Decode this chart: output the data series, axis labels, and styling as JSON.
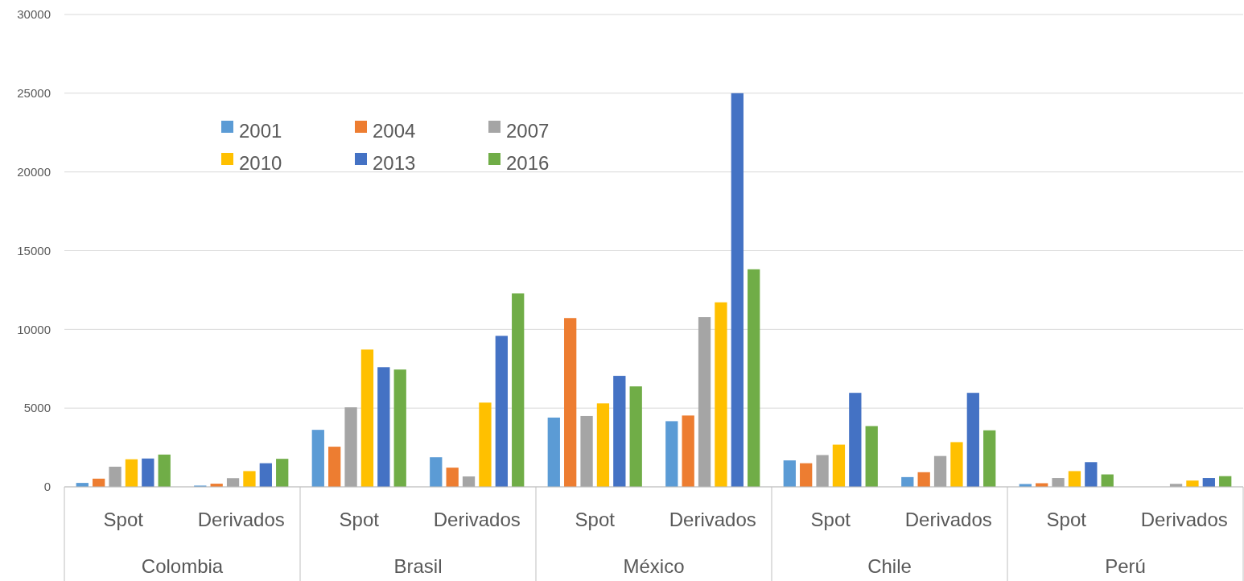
{
  "chart_data": {
    "type": "bar",
    "categories": [
      "Spot",
      "Derivados",
      "Spot",
      "Derivados",
      "Spot",
      "Derivados",
      "Spot",
      "Derivados",
      "Spot",
      "Derivados"
    ],
    "annotations": [
      "Colombia",
      "Brasil",
      "México",
      "Chile",
      "Perú"
    ],
    "series": [
      {
        "name": "2001",
        "color": "#5b9bd5",
        "values": [
          250,
          80,
          3620,
          1880,
          4400,
          4170,
          1680,
          620,
          180,
          0
        ]
      },
      {
        "name": "2004",
        "color": "#ed7d31",
        "values": [
          520,
          200,
          2550,
          1220,
          10720,
          4530,
          1500,
          930,
          230,
          0
        ]
      },
      {
        "name": "2007",
        "color": "#a5a5a5",
        "values": [
          1280,
          550,
          5050,
          660,
          4500,
          10780,
          2020,
          1960,
          560,
          190
        ]
      },
      {
        "name": "2010",
        "color": "#ffc000",
        "values": [
          1750,
          1000,
          8720,
          5350,
          5300,
          11720,
          2680,
          2840,
          1000,
          400
        ]
      },
      {
        "name": "2013",
        "color": "#4472c4",
        "values": [
          1800,
          1500,
          7600,
          9590,
          7050,
          25000,
          5970,
          5970,
          1570,
          560
        ]
      },
      {
        "name": "2016",
        "color": "#70ad47",
        "values": [
          2050,
          1780,
          7450,
          12290,
          6380,
          13820,
          3860,
          3590,
          790,
          680
        ]
      }
    ],
    "ylim": [
      0,
      30000
    ],
    "yticks": [
      0,
      5000,
      10000,
      15000,
      20000,
      25000,
      30000
    ],
    "grid": "y",
    "legend": "top left"
  }
}
